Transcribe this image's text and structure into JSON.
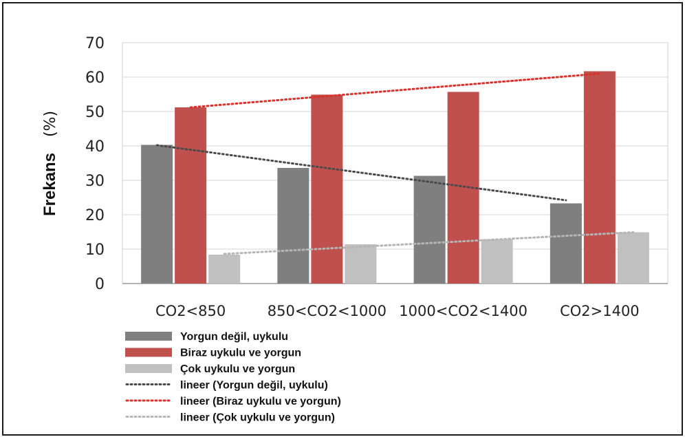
{
  "chart_data": {
    "type": "bar",
    "categories": [
      "CO2<850",
      "850<CO2<1000",
      "1000<CO2<1400",
      "CO2>1400"
    ],
    "ylabel": "Frekans",
    "ylabel_unit": "(%)",
    "ylim": [
      0,
      70
    ],
    "yticks": [
      0,
      10,
      20,
      30,
      40,
      50,
      60,
      70
    ],
    "grid": true,
    "series": [
      {
        "name": "Yorgun değil, uykulu",
        "color": "#7f7f7f",
        "values": [
          40.3,
          33.6,
          31.3,
          23.3
        ]
      },
      {
        "name": "Biraz uykulu ve yorgun",
        "color": "#c0504d",
        "values": [
          51.2,
          54.9,
          55.7,
          61.7
        ]
      },
      {
        "name": "Çok uykulu ve yorgun",
        "color": "#c0c0c0",
        "values": [
          8.4,
          11.4,
          12.9,
          14.9
        ]
      }
    ],
    "trendlines": [
      {
        "name": "lineer (Yorgun değil, uykulu)",
        "color": "#4a4a4a",
        "start": 40.2,
        "end": 24.2
      },
      {
        "name": "lineer (Biraz uykulu ve yorgun)",
        "color": "#d9312b",
        "start": 51.2,
        "end": 61.0
      },
      {
        "name": "lineer (Çok uykulu ve yorgun)",
        "color": "#b5b5b5",
        "start": 8.6,
        "end": 14.9
      }
    ],
    "legend_position": "bottom-left"
  }
}
